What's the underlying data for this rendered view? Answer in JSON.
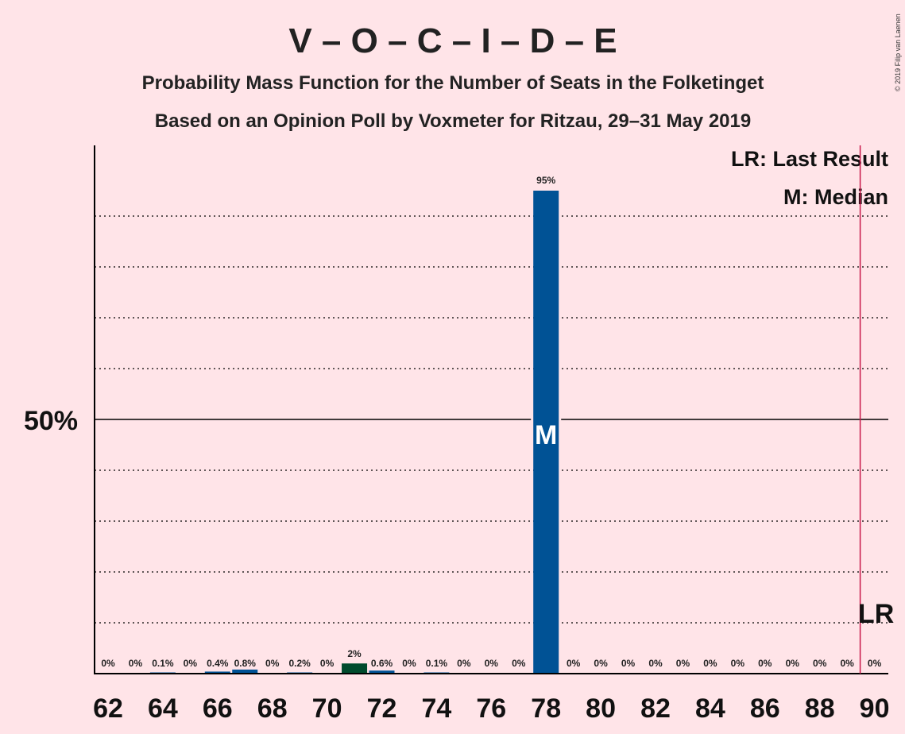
{
  "copyright": "© 2019 Filip van Laenen",
  "chart_data": {
    "type": "bar",
    "title": "V – O – C – I – D – E",
    "subtitle1": "Probability Mass Function for the Number of Seats in the Folketinget",
    "subtitle2": "Based on an Opinion Poll by Voxmeter for Ritzau, 29–31 May 2019",
    "legend": {
      "lr": "LR: Last Result",
      "median": "M: Median"
    },
    "x_ticks": [
      "62",
      "64",
      "66",
      "68",
      "70",
      "72",
      "74",
      "76",
      "78",
      "80",
      "82",
      "84",
      "86",
      "88",
      "90"
    ],
    "y_tick_label": "50%",
    "ylim": [
      0,
      100
    ],
    "xlim": [
      62,
      90
    ],
    "grid": true,
    "median_seat": 78,
    "median_marker": "M",
    "last_result_seat": 90,
    "last_result_marker": "LR",
    "colors": {
      "main": "#005295",
      "dark": "#004b2d",
      "lr_line": "#c8184a"
    },
    "bars": [
      {
        "seat": 62,
        "value": 0,
        "label": "0%"
      },
      {
        "seat": 63,
        "value": 0,
        "label": "0%"
      },
      {
        "seat": 64,
        "value": 0.1,
        "label": "0.1%"
      },
      {
        "seat": 65,
        "value": 0,
        "label": "0%"
      },
      {
        "seat": 66,
        "value": 0.4,
        "label": "0.4%"
      },
      {
        "seat": 67,
        "value": 0.8,
        "label": "0.8%"
      },
      {
        "seat": 68,
        "value": 0,
        "label": "0%"
      },
      {
        "seat": 69,
        "value": 0.2,
        "label": "0.2%"
      },
      {
        "seat": 70,
        "value": 0,
        "label": "0%"
      },
      {
        "seat": 71,
        "value": 2,
        "label": "2%",
        "color": "dark"
      },
      {
        "seat": 72,
        "value": 0.6,
        "label": "0.6%"
      },
      {
        "seat": 73,
        "value": 0,
        "label": "0%"
      },
      {
        "seat": 74,
        "value": 0.1,
        "label": "0.1%"
      },
      {
        "seat": 75,
        "value": 0,
        "label": "0%"
      },
      {
        "seat": 76,
        "value": 0,
        "label": "0%"
      },
      {
        "seat": 77,
        "value": 0,
        "label": "0%"
      },
      {
        "seat": 78,
        "value": 95,
        "label": "95%"
      },
      {
        "seat": 79,
        "value": 0,
        "label": "0%"
      },
      {
        "seat": 80,
        "value": 0,
        "label": "0%"
      },
      {
        "seat": 81,
        "value": 0,
        "label": "0%"
      },
      {
        "seat": 82,
        "value": 0,
        "label": "0%"
      },
      {
        "seat": 83,
        "value": 0,
        "label": "0%"
      },
      {
        "seat": 84,
        "value": 0,
        "label": "0%"
      },
      {
        "seat": 85,
        "value": 0,
        "label": "0%"
      },
      {
        "seat": 86,
        "value": 0,
        "label": "0%"
      },
      {
        "seat": 87,
        "value": 0,
        "label": "0%"
      },
      {
        "seat": 88,
        "value": 0,
        "label": "0%"
      },
      {
        "seat": 89,
        "value": 0,
        "label": "0%"
      },
      {
        "seat": 90,
        "value": 0,
        "label": "0%"
      }
    ]
  }
}
